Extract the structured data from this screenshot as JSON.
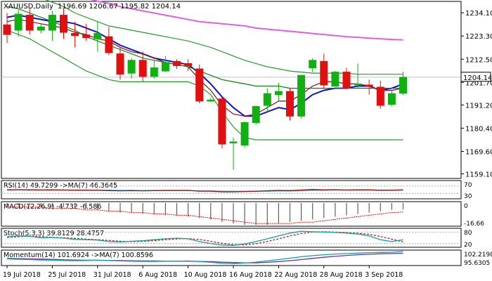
{
  "chart_data": {
    "type": "candlestick",
    "symbol_title": "XAUUSD,Daily",
    "ohlc_readout": "1196.69 1206.67 1195.82 1204.14",
    "last_price": "1204.14",
    "y_ticks": [
      "1234.10",
      "1223.30",
      "1212.50",
      "1201.70",
      "1191.20",
      "1180.40",
      "1169.60",
      "1159.10"
    ],
    "ylim": [
      1157,
      1239.4
    ],
    "x_labels": [
      "19 Jul 2018",
      "25 Jul 2018",
      "31 Jul 2018",
      "6 Aug 2018",
      "10 Aug 2018",
      "16 Aug 2018",
      "22 Aug 2018",
      "28 Aug 2018",
      "3 Sep 2018"
    ],
    "x_label_index": [
      0,
      4,
      8,
      12,
      16,
      20,
      24,
      28,
      32
    ],
    "candles": [
      {
        "o": 1228.5,
        "h": 1234.0,
        "l": 1220.0,
        "c": 1224.0
      },
      {
        "o": 1226.0,
        "h": 1235.5,
        "l": 1223.0,
        "c": 1233.5
      },
      {
        "o": 1233.0,
        "h": 1236.0,
        "l": 1224.0,
        "c": 1226.0
      },
      {
        "o": 1226.0,
        "h": 1229.0,
        "l": 1224.5,
        "c": 1227.5
      },
      {
        "o": 1226.0,
        "h": 1235.0,
        "l": 1221.0,
        "c": 1233.0
      },
      {
        "o": 1233.0,
        "h": 1236.0,
        "l": 1222.0,
        "c": 1225.0
      },
      {
        "o": 1224.5,
        "h": 1230.0,
        "l": 1218.0,
        "c": 1223.5
      },
      {
        "o": 1223.8,
        "h": 1229.0,
        "l": 1221.0,
        "c": 1222.5
      },
      {
        "o": 1222.0,
        "h": 1230.0,
        "l": 1216.0,
        "c": 1224.5
      },
      {
        "o": 1223.0,
        "h": 1227.5,
        "l": 1214.5,
        "c": 1215.5
      },
      {
        "o": 1215.0,
        "h": 1218.0,
        "l": 1203.0,
        "c": 1205.5
      },
      {
        "o": 1206.0,
        "h": 1213.0,
        "l": 1203.5,
        "c": 1212.0
      },
      {
        "o": 1212.0,
        "h": 1216.0,
        "l": 1202.0,
        "c": 1204.5
      },
      {
        "o": 1204.5,
        "h": 1212.0,
        "l": 1203.5,
        "c": 1208.5
      },
      {
        "o": 1207.0,
        "h": 1214.0,
        "l": 1206.5,
        "c": 1211.0
      },
      {
        "o": 1211.5,
        "h": 1212.5,
        "l": 1208.0,
        "c": 1209.5
      },
      {
        "o": 1210.5,
        "h": 1212.5,
        "l": 1207.0,
        "c": 1209.5
      },
      {
        "o": 1208.0,
        "h": 1210.0,
        "l": 1192.0,
        "c": 1193.0
      },
      {
        "o": 1193.5,
        "h": 1194.5,
        "l": 1192.5,
        "c": 1193.5
      },
      {
        "o": 1194.0,
        "h": 1195.0,
        "l": 1171.0,
        "c": 1173.0
      },
      {
        "o": 1174.0,
        "h": 1176.0,
        "l": 1161.0,
        "c": 1174.0
      },
      {
        "o": 1172.5,
        "h": 1183.5,
        "l": 1171.5,
        "c": 1183.0
      },
      {
        "o": 1183.0,
        "h": 1191.0,
        "l": 1182.0,
        "c": 1190.5
      },
      {
        "o": 1191.0,
        "h": 1199.0,
        "l": 1188.0,
        "c": 1196.5
      },
      {
        "o": 1196.0,
        "h": 1201.5,
        "l": 1193.0,
        "c": 1197.5
      },
      {
        "o": 1197.5,
        "h": 1199.0,
        "l": 1184.0,
        "c": 1186.0
      },
      {
        "o": 1186.0,
        "h": 1205.0,
        "l": 1185.0,
        "c": 1205.0
      },
      {
        "o": 1208.5,
        "h": 1213.0,
        "l": 1206.5,
        "c": 1212.0
      },
      {
        "o": 1211.5,
        "h": 1215.0,
        "l": 1199.0,
        "c": 1200.5
      },
      {
        "o": 1200.0,
        "h": 1207.0,
        "l": 1199.5,
        "c": 1206.5
      },
      {
        "o": 1206.5,
        "h": 1208.5,
        "l": 1198.5,
        "c": 1199.0
      },
      {
        "o": 1200.5,
        "h": 1210.5,
        "l": 1199.0,
        "c": 1201.0
      },
      {
        "o": 1200.5,
        "h": 1203.0,
        "l": 1196.0,
        "c": 1200.0
      },
      {
        "o": 1199.5,
        "h": 1202.5,
        "l": 1189.5,
        "c": 1191.0
      },
      {
        "o": 1191.5,
        "h": 1198.0,
        "l": 1190.5,
        "c": 1196.5
      },
      {
        "o": 1196.7,
        "h": 1206.7,
        "l": 1195.8,
        "c": 1204.1
      }
    ],
    "overlays": [
      {
        "color": "#1010d0",
        "values": [
          1232,
          1233,
          1232,
          1231,
          1230,
          1230,
          1229,
          1227,
          1225,
          1222,
          1219,
          1217,
          1215,
          1213,
          1212,
          1211,
          1210,
          1206,
          1201,
          1195,
          1190,
          1186,
          1186,
          1188,
          1190,
          1189,
          1192,
          1196,
          1198,
          1199,
          1199,
          1200,
          1200,
          1198,
          1199,
          1201
        ]
      },
      {
        "color": "#8b1010",
        "values": [
          1230,
          1231,
          1230,
          1229,
          1228,
          1227,
          1225,
          1224,
          1222,
          1221,
          1218,
          1216,
          1215,
          1213,
          1211,
          1210,
          1209,
          1203,
          1198,
          1191,
          1187,
          1186,
          1187,
          1190,
          1193,
          1193,
          1196,
          1200,
          1202,
          1202,
          1201,
          1201,
          1200,
          1198,
          1198,
          1199
        ]
      },
      {
        "color": "#108010",
        "values": [
          1237,
          1236,
          1234,
          1232,
          1230,
          1228,
          1226,
          1223,
          1221,
          1219,
          1217,
          1215,
          1213,
          1212,
          1211,
          1210,
          1209,
          1207,
          1205,
          1203,
          1202,
          1201,
          1200,
          1200,
          1200,
          1199,
          1199,
          1199,
          1199,
          1199,
          1199,
          1199,
          1199,
          1199,
          1199,
          1199
        ]
      },
      {
        "color": "#e060e0",
        "values": [
          1248,
          1247,
          1246,
          1245,
          1244,
          1243,
          1242,
          1241,
          1239.5,
          1238.5,
          1237,
          1236,
          1235,
          1234,
          1233,
          1232,
          1231,
          1230,
          1229.5,
          1229,
          1228.5,
          1228,
          1227,
          1226.5,
          1226,
          1225.5,
          1225,
          1224.5,
          1224,
          1223.5,
          1223,
          1222.7,
          1222.3,
          1222,
          1221.7,
          1221.5
        ]
      },
      {
        "color": "#2a9a2a",
        "values": [
          1248,
          1246,
          1244,
          1241,
          1239,
          1237,
          1234,
          1232,
          1230,
          1228,
          1227,
          1226,
          1225,
          1224,
          1223,
          1222,
          1221,
          1219.5,
          1218,
          1216,
          1214,
          1212,
          1210.5,
          1209,
          1208,
          1207,
          1206.5,
          1206,
          1206,
          1206,
          1206,
          1205.5,
          1205.5,
          1205.5,
          1205.5,
          1205.5
        ]
      },
      {
        "color": "#2a9a2a",
        "values": [
          1226,
          1224,
          1222,
          1219,
          1216,
          1213,
          1210,
          1207,
          1205,
          1203,
          1202,
          1202,
          1202,
          1202,
          1202,
          1202,
          1202,
          1200,
          1196,
          1188,
          1181,
          1176,
          1175,
          1175,
          1175,
          1175,
          1175,
          1175,
          1175,
          1175,
          1175,
          1175,
          1175,
          1175,
          1175,
          1175
        ]
      }
    ],
    "panes": [
      {
        "id": "rsi",
        "label": "RSI(14) 49.7299 ->MA(7) 46.3645",
        "ticks": [
          "70",
          "30"
        ],
        "line1": {
          "color": "#8b1010",
          "values": [
            48,
            50,
            49,
            48,
            49,
            48,
            47,
            47,
            47,
            45,
            44,
            45,
            44,
            45,
            46,
            46,
            46,
            42,
            42,
            38,
            38,
            40,
            42,
            44,
            46,
            45,
            48,
            51,
            49,
            50,
            48,
            49,
            49,
            46,
            47,
            49.7
          ]
        },
        "line2": {
          "color": "#30b0e0",
          "values": [
            50,
            50,
            49,
            49,
            49,
            48,
            48,
            48,
            47,
            47,
            46,
            46,
            45,
            45,
            45,
            45,
            45,
            44,
            44,
            42,
            41,
            41,
            41,
            42,
            43,
            43,
            44,
            46,
            47,
            48,
            48,
            49,
            49,
            48,
            48,
            46.4
          ]
        }
      },
      {
        "id": "macd",
        "label": "MACD(12,26,9) -4.732 -6.586",
        "ticks": [
          "0",
          "-16.66"
        ],
        "histogram": [
          -2,
          -2,
          -2,
          -3,
          -3,
          -3,
          -4,
          -4,
          -5,
          -6,
          -7,
          -7,
          -8,
          -8,
          -9,
          -9,
          -10,
          -11,
          -12,
          -14,
          -15,
          -16,
          -16,
          -16,
          -15,
          -14,
          -13,
          -12,
          -11,
          -10,
          -9,
          -8,
          -7,
          -6,
          -5,
          -4.7
        ],
        "signal": [
          -3,
          -3,
          -3,
          -3,
          -4,
          -4,
          -4,
          -5,
          -5,
          -6,
          -6,
          -7,
          -7,
          -8,
          -8,
          -9,
          -9,
          -10,
          -11,
          -12,
          -13,
          -14,
          -15,
          -15,
          -15,
          -15,
          -14,
          -14,
          -13,
          -12,
          -11,
          -10,
          -9,
          -8,
          -7,
          -6.6
        ]
      },
      {
        "id": "stoch",
        "label": "Stoch(5,3,3) 39.8129 28.4757",
        "ticks": [
          "80",
          "20"
        ],
        "line1": {
          "color": "#10a0a0",
          "values": [
            55,
            60,
            58,
            50,
            52,
            48,
            42,
            40,
            38,
            30,
            28,
            32,
            35,
            40,
            45,
            48,
            45,
            30,
            20,
            12,
            10,
            18,
            30,
            45,
            60,
            75,
            85,
            82,
            80,
            78,
            75,
            70,
            60,
            40,
            30,
            39.8
          ]
        },
        "line2": {
          "color": "#c02020",
          "values": [
            52,
            56,
            58,
            56,
            53,
            50,
            47,
            43,
            40,
            36,
            32,
            30,
            31,
            35,
            40,
            44,
            46,
            41,
            32,
            21,
            14,
            13,
            19,
            31,
            45,
            60,
            73,
            80,
            82,
            80,
            77,
            74,
            68,
            57,
            43,
            28.5
          ]
        }
      },
      {
        "id": "mom",
        "label": "Momentum(14) 101.6924 ->MA(7) 100.8596",
        "ticks": [
          "102.2198",
          "95.6305"
        ],
        "line1": {
          "color": "#10a0a0",
          "values": [
            98.5,
            98.3,
            98.2,
            98.0,
            97.9,
            97.8,
            97.7,
            97.8,
            97.9,
            97.8,
            97.6,
            97.5,
            97.4,
            97.4,
            97.5,
            97.5,
            97.6,
            97.3,
            97.0,
            96.6,
            96.4,
            96.7,
            97.1,
            97.6,
            98.2,
            98.8,
            99.4,
            99.9,
            100.3,
            100.6,
            100.8,
            101.0,
            101.2,
            101.3,
            101.4,
            101.7
          ]
        },
        "line2": {
          "color": "#7030a0",
          "values": [
            98.7,
            98.6,
            98.5,
            98.4,
            98.3,
            98.1,
            98.0,
            97.9,
            97.9,
            97.8,
            97.8,
            97.7,
            97.6,
            97.6,
            97.5,
            97.5,
            97.5,
            97.4,
            97.3,
            97.1,
            96.9,
            96.8,
            96.8,
            97.0,
            97.3,
            97.7,
            98.2,
            98.7,
            99.2,
            99.6,
            100.0,
            100.3,
            100.5,
            100.7,
            100.8,
            100.9
          ]
        }
      }
    ]
  }
}
